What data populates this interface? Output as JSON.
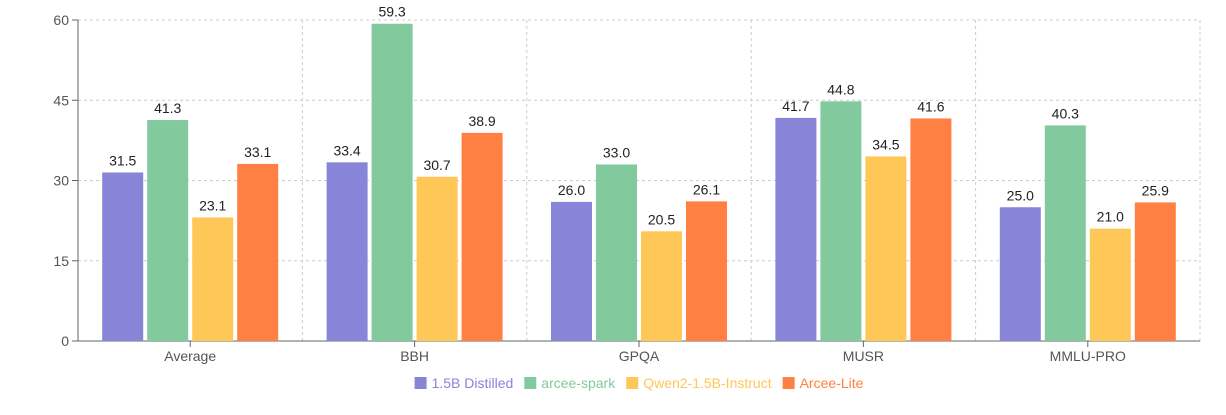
{
  "chart_data": {
    "type": "bar",
    "title": "",
    "xlabel": "",
    "ylabel": "",
    "ylim": [
      0,
      60
    ],
    "yticks": [
      0,
      15,
      30,
      45,
      60
    ],
    "grid": true,
    "legend_position": "bottom",
    "categories": [
      "Average",
      "BBH",
      "GPQA",
      "MUSR",
      "MMLU-PRO"
    ],
    "series": [
      {
        "name": "1.5B Distilled",
        "color": "#8884d8",
        "values": [
          31.5,
          33.4,
          26.0,
          41.7,
          25.0
        ],
        "labels": [
          "31.5",
          "33.4",
          "26.0",
          "41.7",
          "25.0"
        ]
      },
      {
        "name": "arcee-spark",
        "color": "#82ca9d",
        "values": [
          41.3,
          59.3,
          33.0,
          44.8,
          40.3
        ],
        "labels": [
          "41.3",
          "59.3",
          "33.0",
          "44.8",
          "40.3"
        ]
      },
      {
        "name": "Qwen2-1.5B-Instruct",
        "color": "#ffc658",
        "values": [
          23.1,
          30.7,
          20.5,
          34.5,
          21.0
        ],
        "labels": [
          "23.1",
          "30.7",
          "20.5",
          "34.5",
          "21.0"
        ]
      },
      {
        "name": "Arcee-Lite",
        "color": "#ff8042",
        "values": [
          33.1,
          38.9,
          26.1,
          41.6,
          25.9
        ],
        "labels": [
          "33.1",
          "38.9",
          "26.1",
          "41.6",
          "25.9"
        ]
      }
    ]
  }
}
